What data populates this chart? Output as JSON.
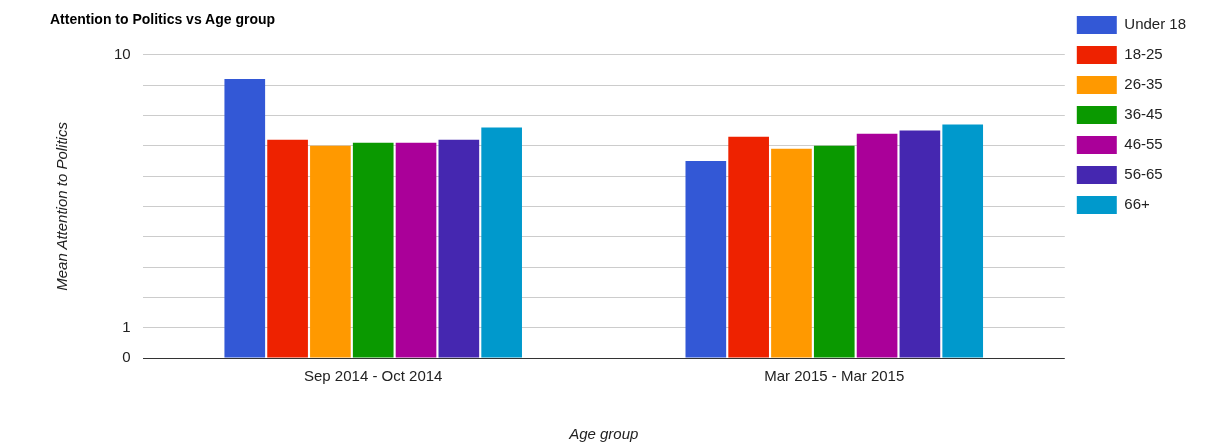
{
  "chart_data": {
    "type": "bar",
    "title": "Attention to Politics vs Age group",
    "xlabel": "Age group",
    "ylabel": "Mean Attention to Politics",
    "categories": [
      "Sep 2014 - Oct 2014",
      "Mar 2015 - Mar 2015"
    ],
    "series": [
      {
        "name": "Under 18",
        "color": "#3358d6",
        "values": [
          9.2,
          6.5
        ]
      },
      {
        "name": "18-25",
        "color": "#ee2200",
        "values": [
          7.2,
          7.3
        ]
      },
      {
        "name": "26-35",
        "color": "#ff9900",
        "values": [
          7.0,
          6.9
        ]
      },
      {
        "name": "36-45",
        "color": "#0a9900",
        "values": [
          7.1,
          7.0
        ]
      },
      {
        "name": "46-55",
        "color": "#aa0099",
        "values": [
          7.1,
          7.4
        ]
      },
      {
        "name": "56-65",
        "color": "#4527b0",
        "values": [
          7.2,
          7.5
        ]
      },
      {
        "name": "66+",
        "color": "#0099cc",
        "values": [
          7.6,
          7.7
        ]
      }
    ],
    "ylim": [
      0,
      10
    ],
    "yticks": [
      0,
      1,
      {
        "value": 2,
        "label": null
      },
      {
        "value": 3,
        "label": null
      },
      {
        "value": 4,
        "label": null
      },
      {
        "value": 5,
        "label": null
      },
      {
        "value": 6,
        "label": null
      },
      {
        "value": 7,
        "label": null
      },
      {
        "value": 8,
        "label": null
      },
      {
        "value": 9,
        "label": null
      },
      10
    ],
    "grid": "y",
    "legend": "top right"
  }
}
